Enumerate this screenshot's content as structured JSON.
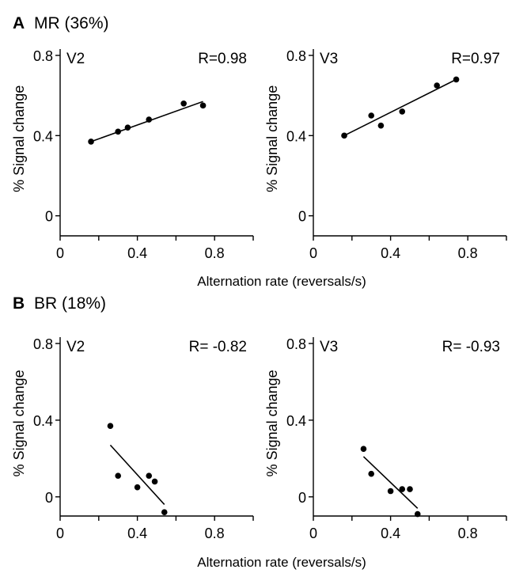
{
  "panels": [
    {
      "letter": "A",
      "label": "MR (36%)",
      "xlabel": "Alternation rate (reversals/s)"
    },
    {
      "letter": "B",
      "label": "BR (18%)",
      "xlabel": "Alternation rate (reversals/s)"
    }
  ],
  "chart_data": [
    {
      "type": "scatter",
      "panel": "A",
      "region": "V2",
      "annotation": "R=0.98",
      "xlabel": "",
      "ylabel": "% Signal change",
      "xlim": [
        0,
        1.0
      ],
      "ylim": [
        -0.1,
        0.8
      ],
      "xticks": [
        "0",
        "0.4",
        "0.8"
      ],
      "yticks": [
        "0",
        "0.4",
        "0.8"
      ],
      "points": [
        {
          "x": 0.16,
          "y": 0.37
        },
        {
          "x": 0.3,
          "y": 0.42
        },
        {
          "x": 0.35,
          "y": 0.44
        },
        {
          "x": 0.46,
          "y": 0.48
        },
        {
          "x": 0.64,
          "y": 0.56
        },
        {
          "x": 0.74,
          "y": 0.55
        }
      ],
      "fit": [
        {
          "x": 0.16,
          "y": 0.37
        },
        {
          "x": 0.74,
          "y": 0.57
        }
      ]
    },
    {
      "type": "scatter",
      "panel": "A",
      "region": "V3",
      "annotation": "R=0.97",
      "xlabel": "",
      "ylabel": "% Signal change",
      "xlim": [
        0,
        1.0
      ],
      "ylim": [
        -0.1,
        0.8
      ],
      "xticks": [
        "0",
        "0.4",
        "0.8"
      ],
      "yticks": [
        "0",
        "0.4",
        "0.8"
      ],
      "points": [
        {
          "x": 0.16,
          "y": 0.4
        },
        {
          "x": 0.3,
          "y": 0.5
        },
        {
          "x": 0.35,
          "y": 0.45
        },
        {
          "x": 0.46,
          "y": 0.52
        },
        {
          "x": 0.64,
          "y": 0.65
        },
        {
          "x": 0.74,
          "y": 0.68
        }
      ],
      "fit": [
        {
          "x": 0.16,
          "y": 0.4
        },
        {
          "x": 0.74,
          "y": 0.68
        }
      ]
    },
    {
      "type": "scatter",
      "panel": "B",
      "region": "V2",
      "annotation": "R= -0.82",
      "xlabel": "",
      "ylabel": "% Signal change",
      "xlim": [
        0,
        1.0
      ],
      "ylim": [
        -0.1,
        0.8
      ],
      "xticks": [
        "0",
        "0.4",
        "0.8"
      ],
      "yticks": [
        "0",
        "0.4",
        "0.8"
      ],
      "points": [
        {
          "x": 0.26,
          "y": 0.37
        },
        {
          "x": 0.3,
          "y": 0.11
        },
        {
          "x": 0.4,
          "y": 0.05
        },
        {
          "x": 0.46,
          "y": 0.11
        },
        {
          "x": 0.49,
          "y": 0.08
        },
        {
          "x": 0.54,
          "y": -0.08
        }
      ],
      "fit": [
        {
          "x": 0.26,
          "y": 0.27
        },
        {
          "x": 0.54,
          "y": -0.04
        }
      ]
    },
    {
      "type": "scatter",
      "panel": "B",
      "region": "V3",
      "annotation": "R= -0.93",
      "xlabel": "",
      "ylabel": "% Signal change",
      "xlim": [
        0,
        1.0
      ],
      "ylim": [
        -0.1,
        0.8
      ],
      "xticks": [
        "0",
        "0.4",
        "0.8"
      ],
      "yticks": [
        "0",
        "0.4",
        "0.8"
      ],
      "points": [
        {
          "x": 0.26,
          "y": 0.25
        },
        {
          "x": 0.3,
          "y": 0.12
        },
        {
          "x": 0.4,
          "y": 0.03
        },
        {
          "x": 0.46,
          "y": 0.04
        },
        {
          "x": 0.5,
          "y": 0.04
        },
        {
          "x": 0.54,
          "y": -0.09
        }
      ],
      "fit": [
        {
          "x": 0.26,
          "y": 0.21
        },
        {
          "x": 0.54,
          "y": -0.06
        }
      ]
    }
  ]
}
